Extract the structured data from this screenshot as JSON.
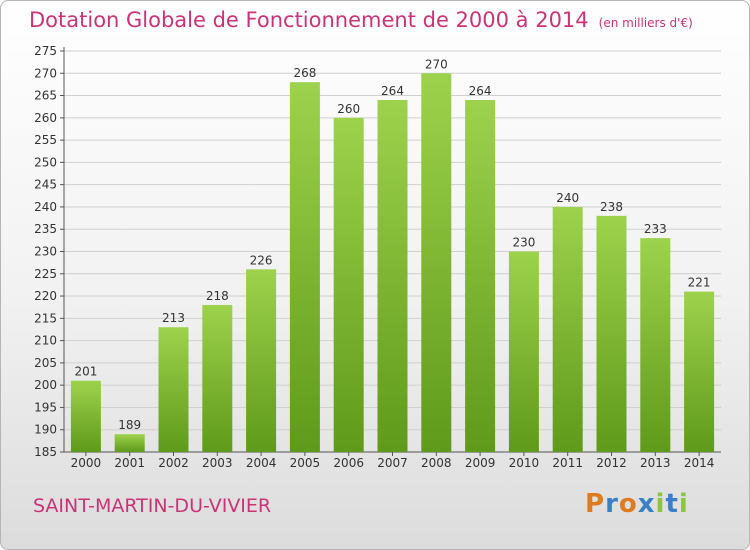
{
  "header": {
    "title": "Dotation Globale de Fonctionnement de 2000 à 2014",
    "subtitle": "(en milliers d'€)"
  },
  "footer": {
    "commune": "SAINT-MARTIN-DU-VIVIER",
    "logo": "Proxiti"
  },
  "colors": {
    "title": "#cc3377",
    "bar_light": "#9dd24c",
    "bar_dark": "#5f9a1a",
    "grid": "#d0d0d0"
  },
  "chart_data": {
    "type": "bar",
    "title": "Dotation Globale de Fonctionnement de 2000 à 2014",
    "subtitle": "(en milliers d'€)",
    "xlabel": "",
    "ylabel": "",
    "categories": [
      "2000",
      "2001",
      "2002",
      "2003",
      "2004",
      "2005",
      "2006",
      "2007",
      "2008",
      "2009",
      "2010",
      "2011",
      "2012",
      "2013",
      "2014"
    ],
    "values": [
      201,
      189,
      213,
      218,
      226,
      268,
      260,
      264,
      270,
      264,
      230,
      240,
      238,
      233,
      221
    ],
    "ylim": [
      185,
      275
    ],
    "yticks": [
      185,
      190,
      195,
      200,
      205,
      210,
      215,
      220,
      225,
      230,
      235,
      240,
      245,
      250,
      255,
      260,
      265,
      270,
      275
    ],
    "grid": true,
    "data_labels": true
  }
}
